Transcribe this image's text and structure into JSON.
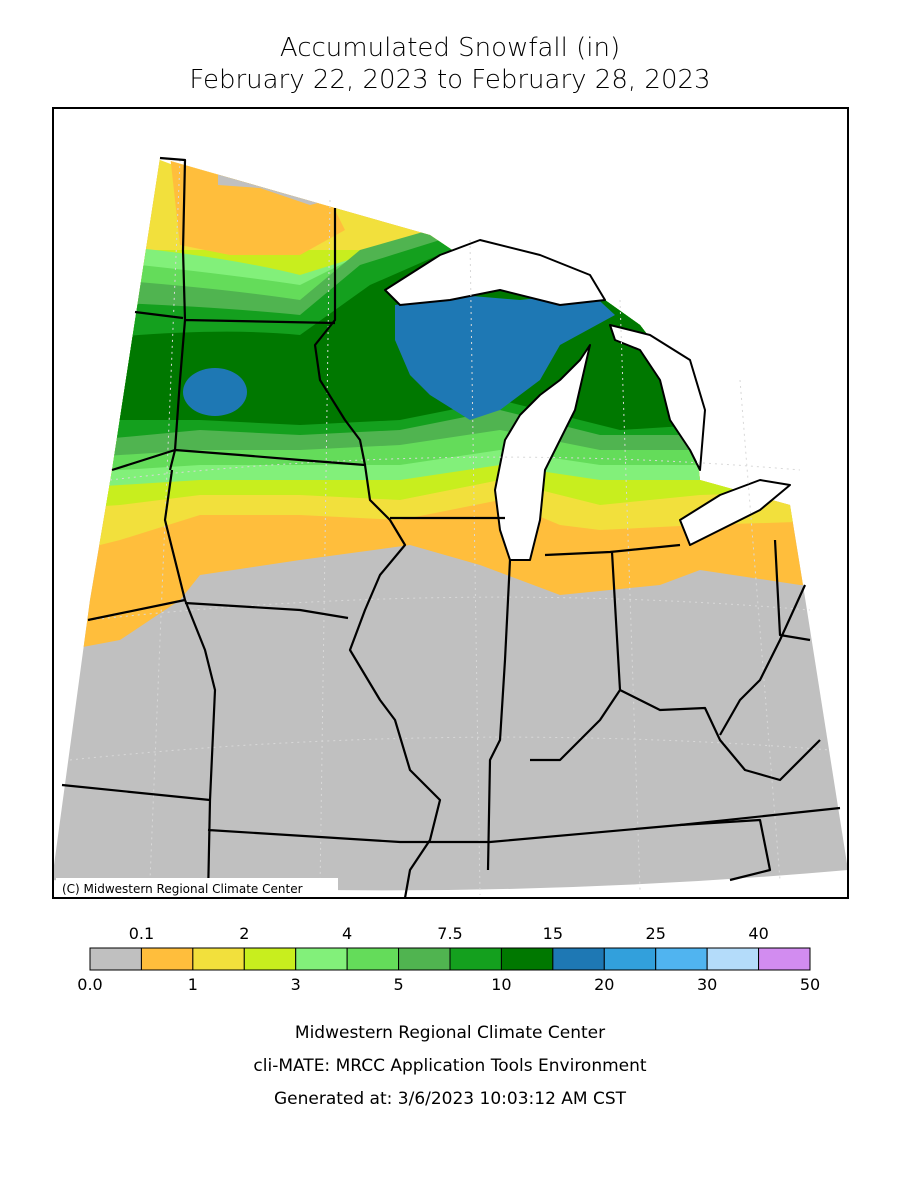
{
  "header": {
    "title_line1": "Accumulated Snowfall (in)",
    "title_line2": "February 22, 2023 to February 28, 2023"
  },
  "map": {
    "copyright": "(C) Midwestern Regional Climate Center"
  },
  "legend": {
    "colors": [
      "#c0c0c0",
      "#ffbe3c",
      "#f2e03c",
      "#c8ee1e",
      "#82f07a",
      "#64dc5a",
      "#50b450",
      "#14a01e",
      "#007800",
      "#1e78b4",
      "#32a0dc",
      "#50b4f0",
      "#b4dcfa",
      "#d28cf0"
    ],
    "upper_labels": [
      "0.1",
      "2",
      "4",
      "7.5",
      "15",
      "25",
      "40"
    ],
    "lower_labels": [
      "0.0",
      "1",
      "3",
      "5",
      "10",
      "20",
      "30",
      "50"
    ]
  },
  "footer": {
    "line1": "Midwestern Regional Climate Center",
    "line2": "cli-MATE: MRCC Application Tools Environment",
    "line3": "Generated at: 3/6/2023 10:03:12 AM CST"
  }
}
